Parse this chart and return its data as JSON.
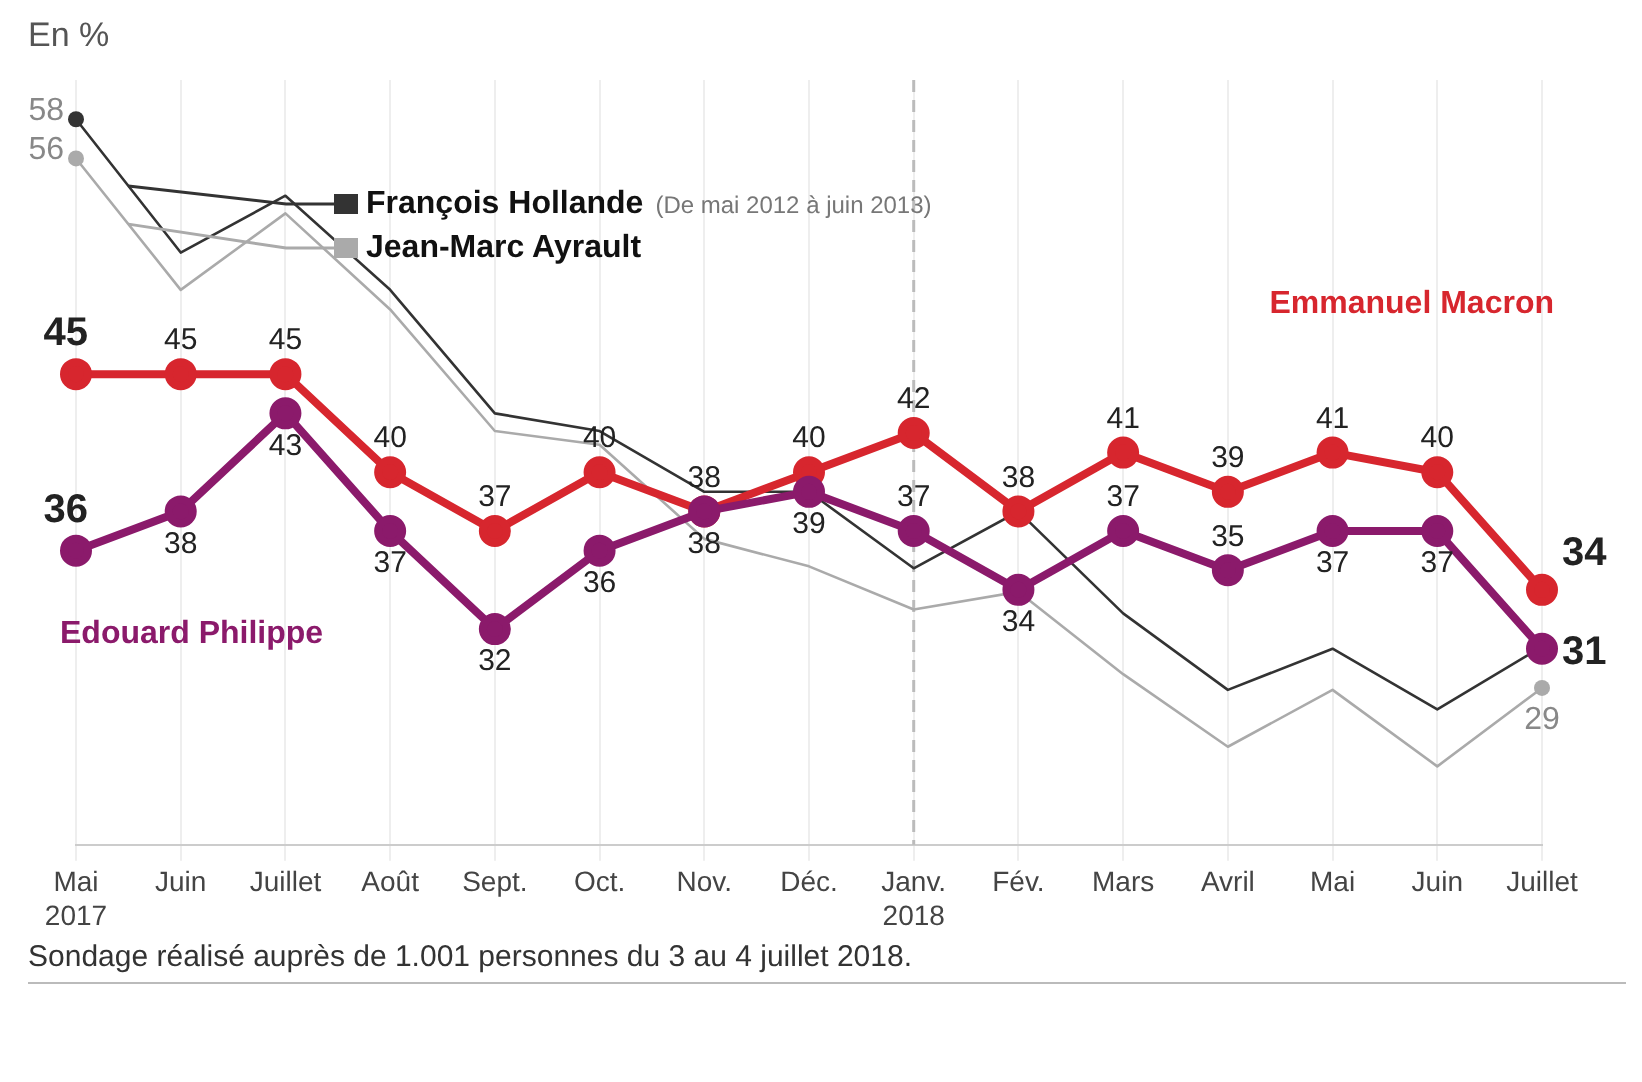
{
  "chart_data": {
    "type": "line",
    "subtitle": "En %",
    "categories": [
      "Mai\n2017",
      "Juin",
      "Juillet",
      "Août",
      "Sept.",
      "Oct.",
      "Nov.",
      "Déc.",
      "Janv.\n2018",
      "Fév.",
      "Mars",
      "Avril",
      "Mai",
      "Juin",
      "Juillet"
    ],
    "series": [
      {
        "name": "François Hollande",
        "color": "#333333",
        "marker": "none",
        "values": [
          58,
          51.2,
          54.1,
          49.3,
          43,
          42.1,
          39,
          39,
          35.1,
          38,
          32.8,
          28.9,
          31,
          27.9,
          31.1
        ],
        "value_labels": [
          "58",
          null,
          null,
          null,
          null,
          null,
          null,
          null,
          null,
          null,
          null,
          null,
          null,
          null,
          null
        ]
      },
      {
        "name": "Jean-Marc Ayrault",
        "color": "#aaaaaa",
        "marker": "none",
        "values": [
          56,
          49.3,
          53.2,
          48.3,
          42.1,
          41.4,
          36.6,
          35.2,
          33,
          33.9,
          29.7,
          26,
          28.9,
          25,
          29
        ],
        "value_labels": [
          "56",
          null,
          null,
          null,
          null,
          null,
          null,
          null,
          null,
          null,
          null,
          null,
          null,
          null,
          "29"
        ]
      },
      {
        "name": "Emmanuel Macron",
        "color": "#d7262e",
        "marker": "circle",
        "values": [
          45,
          45,
          45,
          40,
          37,
          40,
          38,
          40,
          42,
          38,
          41,
          39,
          41,
          40,
          34
        ],
        "value_labels": [
          "45",
          "45",
          "45",
          "40",
          "37",
          "40",
          "38",
          "40",
          "42",
          "38",
          "41",
          "39",
          "41",
          "40",
          "34"
        ]
      },
      {
        "name": "Edouard Philippe",
        "color": "#8b1a6b",
        "marker": "circle",
        "values": [
          36,
          38,
          43,
          37,
          32,
          36,
          38,
          39,
          37,
          34,
          37,
          35,
          37,
          37,
          31
        ],
        "value_labels": [
          "36",
          "38",
          "43",
          "37",
          "32",
          "36",
          "38",
          "39",
          "37",
          "34",
          "37",
          "35",
          "37",
          "37",
          "31"
        ]
      }
    ],
    "ylim": [
      21,
      60
    ],
    "grid": "x",
    "legend": "top left",
    "ref_lines": [
      {
        "axis": "x",
        "value": "Janv.\n2018",
        "color": "#bbbbbb",
        "line_style": "dashed"
      }
    ],
    "annotations": [
      "(De mai 2012 à juin 2013)",
      "Sondage réalisé auprès de 1.001 personnes du 3 au 4 juillet 2018."
    ]
  }
}
